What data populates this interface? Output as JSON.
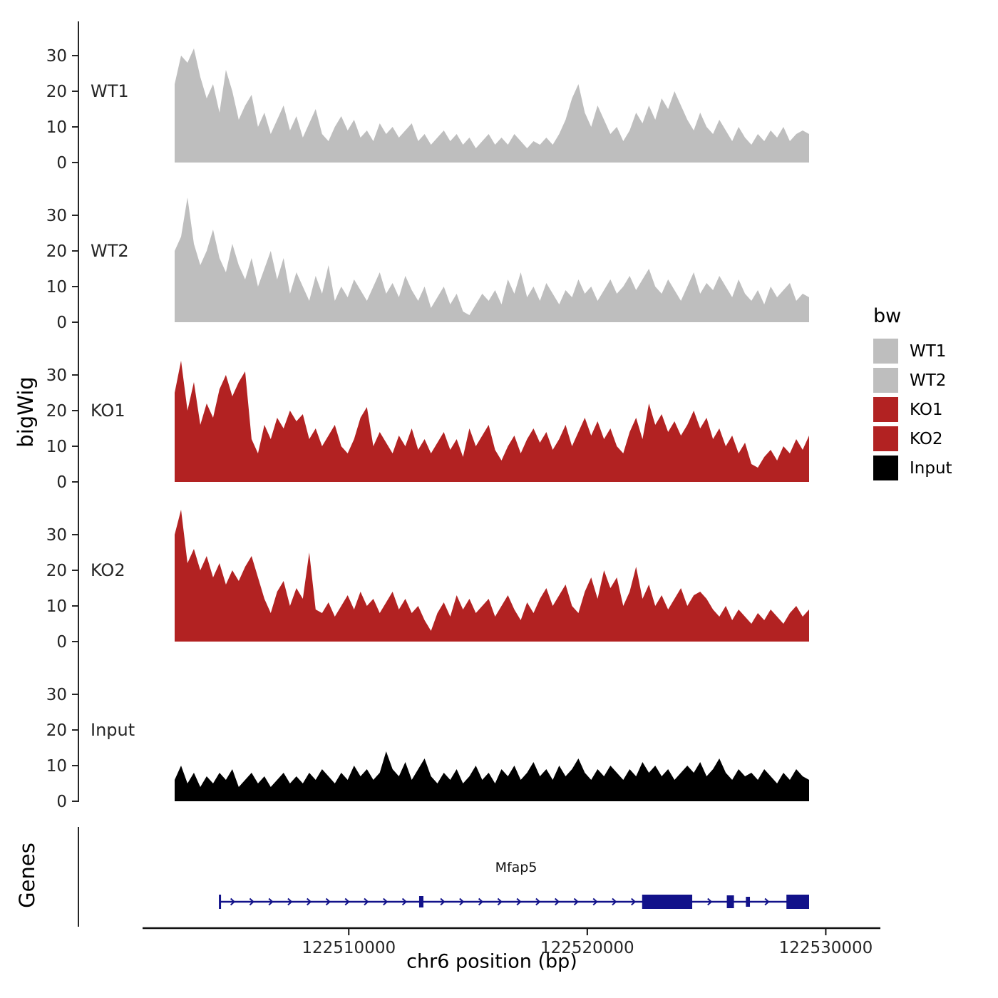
{
  "figure": {
    "y_axis_title": "bigWig",
    "genes_axis_title": "Genes",
    "x_axis_title": "chr6 position (bp)"
  },
  "legend": {
    "title": "bw",
    "items": [
      {
        "label": "WT1",
        "color": "#BEBEBE"
      },
      {
        "label": "WT2",
        "color": "#BEBEBE"
      },
      {
        "label": "KO1",
        "color": "#B22222"
      },
      {
        "label": "KO2",
        "color": "#B22222"
      },
      {
        "label": "Input",
        "color": "#000000"
      }
    ]
  },
  "chart_data": {
    "type": "area",
    "title": "",
    "xlabel": "chr6 position (bp)",
    "ylabel": "bigWig",
    "legend_title": "bw",
    "legend_position": "right",
    "grid": false,
    "x_range_bp": [
      122502700,
      122529300
    ],
    "x_axis": {
      "ticks": [
        122510000,
        122520000,
        122530000
      ],
      "tick_labels": [
        "122510000",
        "122520000",
        "122530000"
      ]
    },
    "y_ticks": [
      0,
      10,
      20,
      30
    ],
    "ylim": [
      0,
      38
    ],
    "tracks": [
      {
        "name": "WT1",
        "color": "#BEBEBE",
        "values": [
          22,
          30,
          28,
          32,
          24,
          18,
          22,
          14,
          26,
          20,
          12,
          16,
          19,
          10,
          14,
          8,
          12,
          16,
          9,
          13,
          7,
          11,
          15,
          8,
          6,
          10,
          13,
          9,
          12,
          7,
          9,
          6,
          11,
          8,
          10,
          7,
          9,
          11,
          6,
          8,
          5,
          7,
          9,
          6,
          8,
          5,
          7,
          4,
          6,
          8,
          5,
          7,
          5,
          8,
          6,
          4,
          6,
          5,
          7,
          5,
          8,
          12,
          18,
          22,
          14,
          10,
          16,
          12,
          8,
          10,
          6,
          9,
          14,
          11,
          16,
          12,
          18,
          15,
          20,
          16,
          12,
          9,
          14,
          10,
          8,
          12,
          9,
          6,
          10,
          7,
          5,
          8,
          6,
          9,
          7,
          10,
          6,
          8,
          9,
          8
        ]
      },
      {
        "name": "WT2",
        "color": "#BEBEBE",
        "values": [
          20,
          24,
          35,
          22,
          16,
          20,
          26,
          18,
          14,
          22,
          16,
          12,
          18,
          10,
          15,
          20,
          12,
          18,
          8,
          14,
          10,
          6,
          13,
          8,
          16,
          6,
          10,
          7,
          12,
          9,
          6,
          10,
          14,
          8,
          11,
          7,
          13,
          9,
          6,
          10,
          4,
          7,
          10,
          5,
          8,
          3,
          2,
          5,
          8,
          6,
          9,
          5,
          12,
          8,
          14,
          7,
          10,
          6,
          11,
          8,
          5,
          9,
          7,
          12,
          8,
          10,
          6,
          9,
          12,
          8,
          10,
          13,
          9,
          12,
          15,
          10,
          8,
          12,
          9,
          6,
          10,
          14,
          8,
          11,
          9,
          13,
          10,
          7,
          12,
          8,
          6,
          9,
          5,
          10,
          7,
          9,
          11,
          6,
          8,
          7
        ]
      },
      {
        "name": "KO1",
        "color": "#B22222",
        "values": [
          25,
          34,
          20,
          28,
          16,
          22,
          18,
          26,
          30,
          24,
          28,
          31,
          12,
          8,
          16,
          12,
          18,
          15,
          20,
          17,
          19,
          12,
          15,
          10,
          13,
          16,
          10,
          8,
          12,
          18,
          21,
          10,
          14,
          11,
          8,
          13,
          10,
          15,
          9,
          12,
          8,
          11,
          14,
          9,
          12,
          7,
          15,
          10,
          13,
          16,
          9,
          6,
          10,
          13,
          8,
          12,
          15,
          11,
          14,
          9,
          12,
          16,
          10,
          14,
          18,
          13,
          17,
          12,
          15,
          10,
          8,
          14,
          18,
          12,
          22,
          16,
          19,
          14,
          17,
          13,
          16,
          20,
          15,
          18,
          12,
          15,
          10,
          13,
          8,
          11,
          5,
          4,
          7,
          9,
          6,
          10,
          8,
          12,
          9,
          13
        ]
      },
      {
        "name": "KO2",
        "color": "#B22222",
        "values": [
          30,
          37,
          22,
          26,
          20,
          24,
          18,
          22,
          16,
          20,
          17,
          21,
          24,
          18,
          12,
          8,
          14,
          17,
          10,
          15,
          12,
          25,
          9,
          8,
          11,
          7,
          10,
          13,
          9,
          14,
          10,
          12,
          8,
          11,
          14,
          9,
          12,
          8,
          10,
          6,
          3,
          8,
          11,
          7,
          13,
          9,
          12,
          8,
          10,
          12,
          7,
          10,
          13,
          9,
          6,
          11,
          8,
          12,
          15,
          10,
          13,
          16,
          10,
          8,
          14,
          18,
          12,
          20,
          15,
          18,
          10,
          14,
          21,
          12,
          16,
          10,
          13,
          9,
          12,
          15,
          10,
          13,
          14,
          12,
          9,
          7,
          10,
          6,
          9,
          7,
          5,
          8,
          6,
          9,
          7,
          5,
          8,
          10,
          7,
          9
        ]
      },
      {
        "name": "Input",
        "color": "#000000",
        "values": [
          6,
          10,
          5,
          8,
          4,
          7,
          5,
          8,
          6,
          9,
          4,
          6,
          8,
          5,
          7,
          4,
          6,
          8,
          5,
          7,
          5,
          8,
          6,
          9,
          7,
          5,
          8,
          6,
          10,
          7,
          9,
          6,
          8,
          14,
          9,
          7,
          11,
          6,
          9,
          12,
          7,
          5,
          8,
          6,
          9,
          5,
          7,
          10,
          6,
          8,
          5,
          9,
          7,
          10,
          6,
          8,
          11,
          7,
          9,
          6,
          10,
          7,
          9,
          12,
          8,
          6,
          9,
          7,
          10,
          8,
          6,
          9,
          7,
          11,
          8,
          10,
          7,
          9,
          6,
          8,
          10,
          8,
          11,
          7,
          9,
          12,
          8,
          6,
          9,
          7,
          8,
          6,
          9,
          7,
          5,
          8,
          6,
          9,
          7,
          6
        ]
      }
    ],
    "gene": {
      "name": "Mfap5",
      "chrom": "chr6",
      "strand": "+",
      "start": 122504600,
      "end": 122529300,
      "color": "#12128A",
      "exons": [
        {
          "start": 122512950,
          "end": 122513130,
          "height": 16
        },
        {
          "start": 122522300,
          "end": 122524400,
          "height": 20
        },
        {
          "start": 122525850,
          "end": 122526150,
          "height": 18
        },
        {
          "start": 122526650,
          "end": 122526820,
          "height": 14
        },
        {
          "start": 122528350,
          "end": 122529300,
          "height": 20
        }
      ]
    }
  }
}
